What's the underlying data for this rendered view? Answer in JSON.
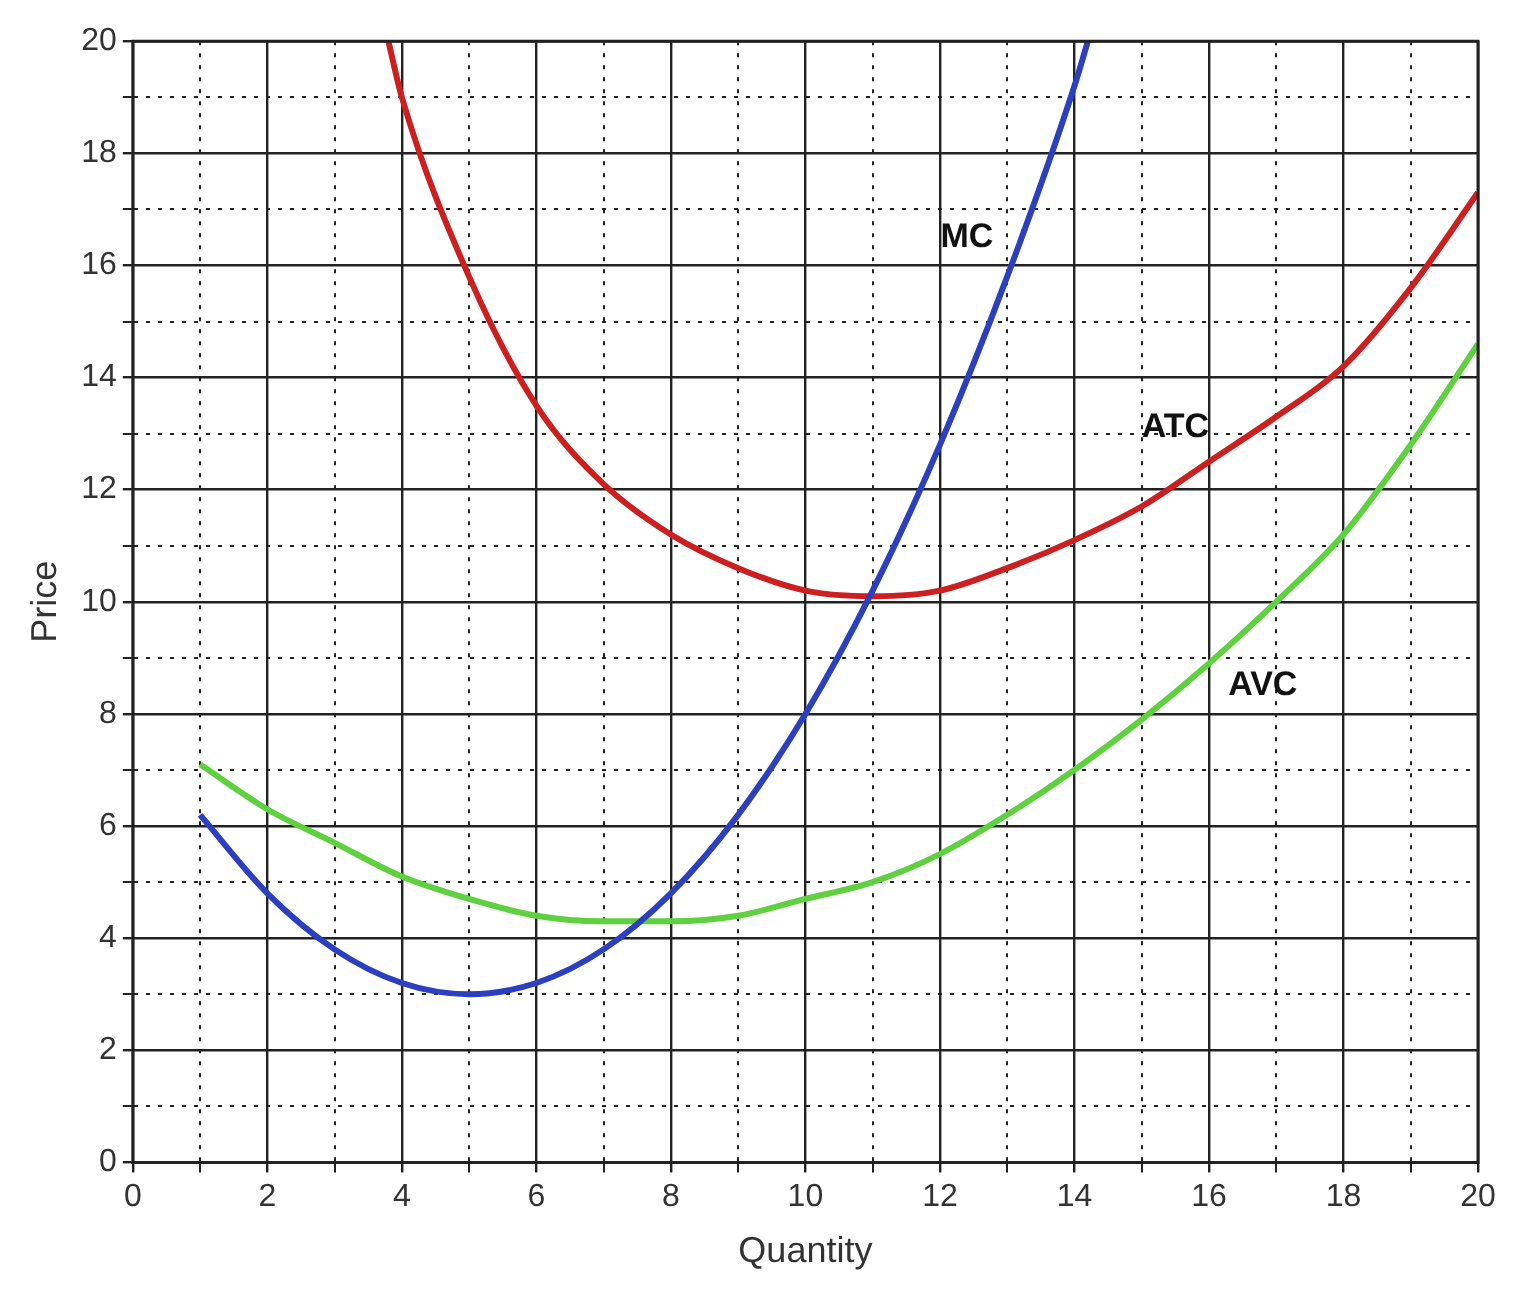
{
  "chart_data": {
    "type": "line",
    "xlabel": "Quantity",
    "ylabel": "Price",
    "xlim": [
      0,
      20
    ],
    "ylim": [
      0,
      20
    ],
    "xticks": [
      0,
      {
        "value": 1,
        "label": null
      },
      2,
      {
        "value": 3,
        "label": null
      },
      4,
      {
        "value": 5,
        "label": null
      },
      6,
      {
        "value": 7,
        "label": null
      },
      8,
      {
        "value": 9,
        "label": null
      },
      10,
      {
        "value": 11,
        "label": null
      },
      12,
      {
        "value": 13,
        "label": null
      },
      14,
      {
        "value": 15,
        "label": null
      },
      16,
      {
        "value": 17,
        "label": null
      },
      18,
      {
        "value": 19,
        "label": null
      },
      20
    ],
    "yticks": [
      0,
      {
        "value": 1,
        "label": null
      },
      2,
      {
        "value": 3,
        "label": null
      },
      4,
      {
        "value": 5,
        "label": null
      },
      6,
      {
        "value": 7,
        "label": null
      },
      8,
      {
        "value": 9,
        "label": null
      },
      10,
      {
        "value": 11,
        "label": null
      },
      12,
      {
        "value": 13,
        "label": null
      },
      14,
      {
        "value": 15,
        "label": null
      },
      16,
      {
        "value": 17,
        "label": null
      },
      18,
      {
        "value": 19,
        "label": null
      },
      20
    ],
    "grid": true,
    "series": [
      {
        "name": "MC",
        "color": "#2b3fbf",
        "x": [
          1,
          2,
          3,
          4,
          5,
          6,
          7,
          8,
          9,
          10,
          11,
          12,
          13,
          14,
          14.2
        ],
        "values": [
          6.2,
          4.8,
          3.8,
          3.2,
          3.0,
          3.2,
          3.8,
          4.8,
          6.2,
          8.0,
          10.2,
          12.8,
          15.8,
          19.2,
          20
        ]
      },
      {
        "name": "ATC",
        "color": "#cc2020",
        "x": [
          3.8,
          4,
          5,
          6,
          7,
          8,
          9,
          10,
          11,
          12,
          13,
          14,
          15,
          16,
          17,
          18,
          19,
          20
        ],
        "values": [
          20,
          19,
          15.8,
          13.5,
          12.1,
          11.2,
          10.6,
          10.2,
          10.1,
          10.2,
          10.6,
          11.1,
          11.7,
          12.5,
          13.3,
          14.2,
          15.6,
          17.3
        ]
      },
      {
        "name": "AVC",
        "color": "#5fd03f",
        "x": [
          1,
          2,
          3,
          4,
          5,
          6,
          7,
          8,
          9,
          10,
          11,
          12,
          13,
          14,
          15,
          16,
          17,
          18,
          19,
          20
        ],
        "values": [
          7.1,
          6.3,
          5.7,
          5.1,
          4.7,
          4.4,
          4.3,
          4.3,
          4.4,
          4.7,
          5.0,
          5.5,
          6.2,
          7.0,
          7.9,
          8.9,
          10.0,
          11.2,
          12.8,
          14.6
        ]
      }
    ]
  }
}
